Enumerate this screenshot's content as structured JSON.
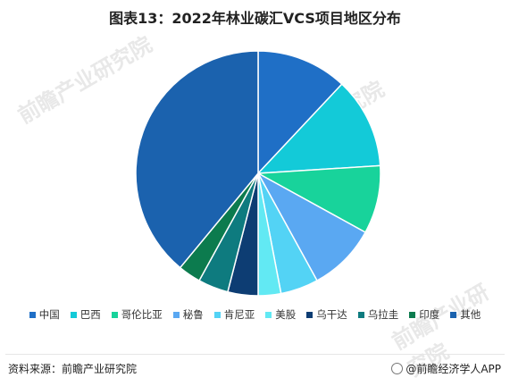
{
  "title": "图表13：2022年林业碳汇VCS项目地区分布",
  "chart_data": {
    "type": "pie",
    "title": "图表13：2022年林业碳汇VCS项目地区分布",
    "start_angle_deg": 0,
    "direction": "clockwise",
    "legend_position": "bottom",
    "slices": [
      {
        "label": "中国",
        "value": 12,
        "color": "#1f6fc6"
      },
      {
        "label": "巴西",
        "value": 12,
        "color": "#13cad8"
      },
      {
        "label": "哥伦比亚",
        "value": 9,
        "color": "#18d39b"
      },
      {
        "label": "秘鲁",
        "value": 9,
        "color": "#5aa8f2"
      },
      {
        "label": "肯尼亚",
        "value": 5,
        "color": "#53d3f5"
      },
      {
        "label": "美股",
        "value": 3,
        "color": "#62e9f3"
      },
      {
        "label": "乌干达",
        "value": 4,
        "color": "#0d3d73"
      },
      {
        "label": "乌拉圭",
        "value": 4,
        "color": "#0e7b7f"
      },
      {
        "label": "印度",
        "value": 3,
        "color": "#0c7b4e"
      },
      {
        "label": "其他",
        "value": 39,
        "color": "#1b62ae"
      }
    ]
  },
  "footer": {
    "source": "资料来源：前瞻产业研究院",
    "brand": "@前瞻经济学人APP"
  },
  "watermarks": [
    "前瞻产业研究院",
    "前瞻产业研究院",
    "前瞻产业研究院"
  ]
}
